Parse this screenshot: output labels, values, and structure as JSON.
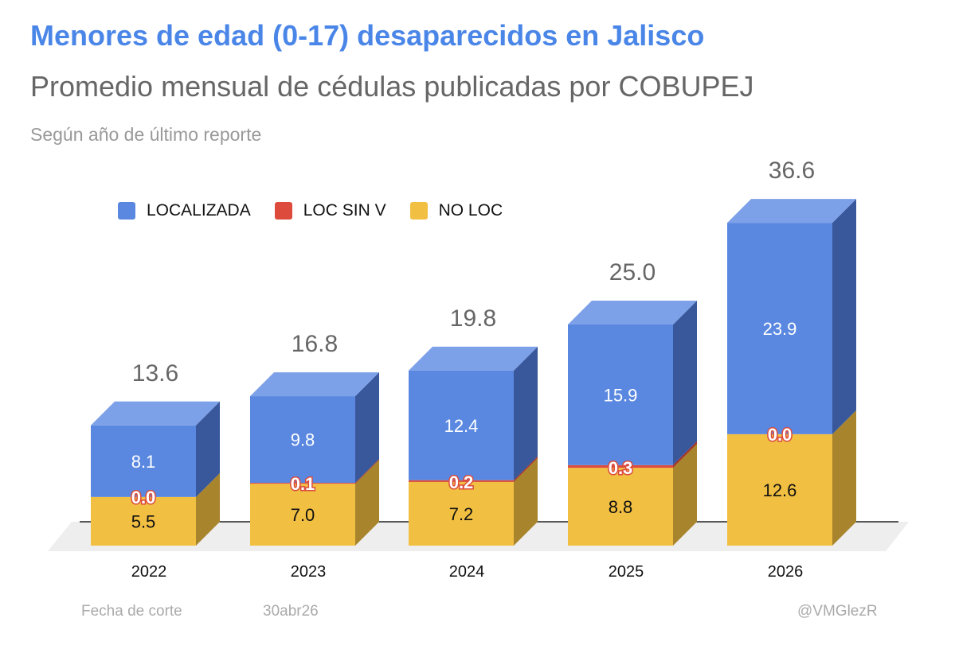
{
  "title": "Menores de edad (0-17) desaparecidos en Jalisco",
  "subtitle": "Promedio mensual de cédulas publicadas por COBUPEJ",
  "note": "Según año de último reporte",
  "footer": {
    "label": "Fecha de corte",
    "date": "30abr26",
    "handle": "@VMGlezR"
  },
  "colors": {
    "localizada": "#5a88e0",
    "localizada_side": "#39589c",
    "localizada_top": "#7da1e8",
    "loc_sin_v": "#dc4b3c",
    "no_loc": "#f1bf42",
    "no_loc_side": "#a8842d",
    "total_label": "#666666"
  },
  "legend": [
    {
      "name": "LOCALIZADA",
      "color": "#5a88e0"
    },
    {
      "name": "LOC SIN V",
      "color": "#dc4b3c"
    },
    {
      "name": "NO LOC",
      "color": "#f1bf42"
    }
  ],
  "chart_data": {
    "type": "bar",
    "stacked": true,
    "three_d": true,
    "categories": [
      "2022",
      "2023",
      "2024",
      "2025",
      "2026"
    ],
    "series": [
      {
        "name": "NO LOC",
        "values": [
          5.5,
          7.0,
          7.2,
          8.8,
          12.6
        ],
        "labels": [
          "5.5",
          "7.0",
          "7.2",
          "8.8",
          "12.6"
        ]
      },
      {
        "name": "LOC SIN V",
        "values": [
          0.0,
          0.1,
          0.2,
          0.3,
          0.0
        ],
        "labels": [
          "0.0",
          "0.1",
          "0.2",
          "0.3",
          "0.0"
        ]
      },
      {
        "name": "LOCALIZADA",
        "values": [
          8.1,
          9.8,
          12.4,
          15.9,
          23.9
        ],
        "labels": [
          "8.1",
          "9.8",
          "12.4",
          "15.9",
          "23.9"
        ]
      }
    ],
    "totals": [
      13.6,
      16.8,
      19.8,
      25.0,
      36.6
    ],
    "total_labels": [
      "13.6",
      "16.8",
      "19.8",
      "25.0",
      "36.6"
    ],
    "legend_position": "top-left",
    "grid": false,
    "ylim": [
      0,
      40
    ]
  }
}
